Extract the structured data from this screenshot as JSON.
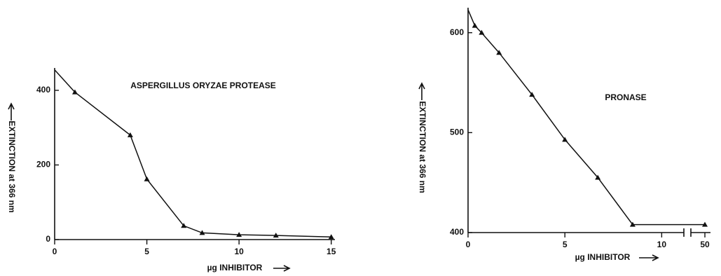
{
  "chart_data": [
    {
      "type": "line",
      "annotation": "ASPERGILLUS ORYZAE PROTEASE",
      "x_label": "µg INHIBITOR",
      "y_label": "EXTINCTION at 366 nm",
      "x": [
        0,
        1.1,
        4.1,
        5,
        7,
        8,
        10,
        12,
        15
      ],
      "values": [
        455,
        395,
        280,
        162,
        37,
        18,
        13,
        11,
        7
      ],
      "xlim": [
        0,
        15.2
      ],
      "ylim": [
        0,
        460
      ],
      "xticks": [
        0,
        5,
        10,
        15
      ],
      "yticks": [
        0,
        200,
        400
      ],
      "color": "#111111"
    },
    {
      "type": "line",
      "annotation": "PRONASE",
      "x_label": "µg INHIBITOR",
      "y_label": "EXTINCTION at 366 nm",
      "x": [
        0,
        0.35,
        0.7,
        1.6,
        3.3,
        5,
        6.7,
        8.5,
        50
      ],
      "values": [
        623,
        607,
        600,
        580,
        538,
        493,
        455,
        408,
        408
      ],
      "xlim": [
        0,
        51
      ],
      "ylim": [
        400,
        625
      ],
      "axis_break": [
        11,
        48
      ],
      "xticks": [
        0,
        5,
        10,
        50
      ],
      "yticks": [
        400,
        500,
        600
      ],
      "color": "#111111"
    }
  ]
}
